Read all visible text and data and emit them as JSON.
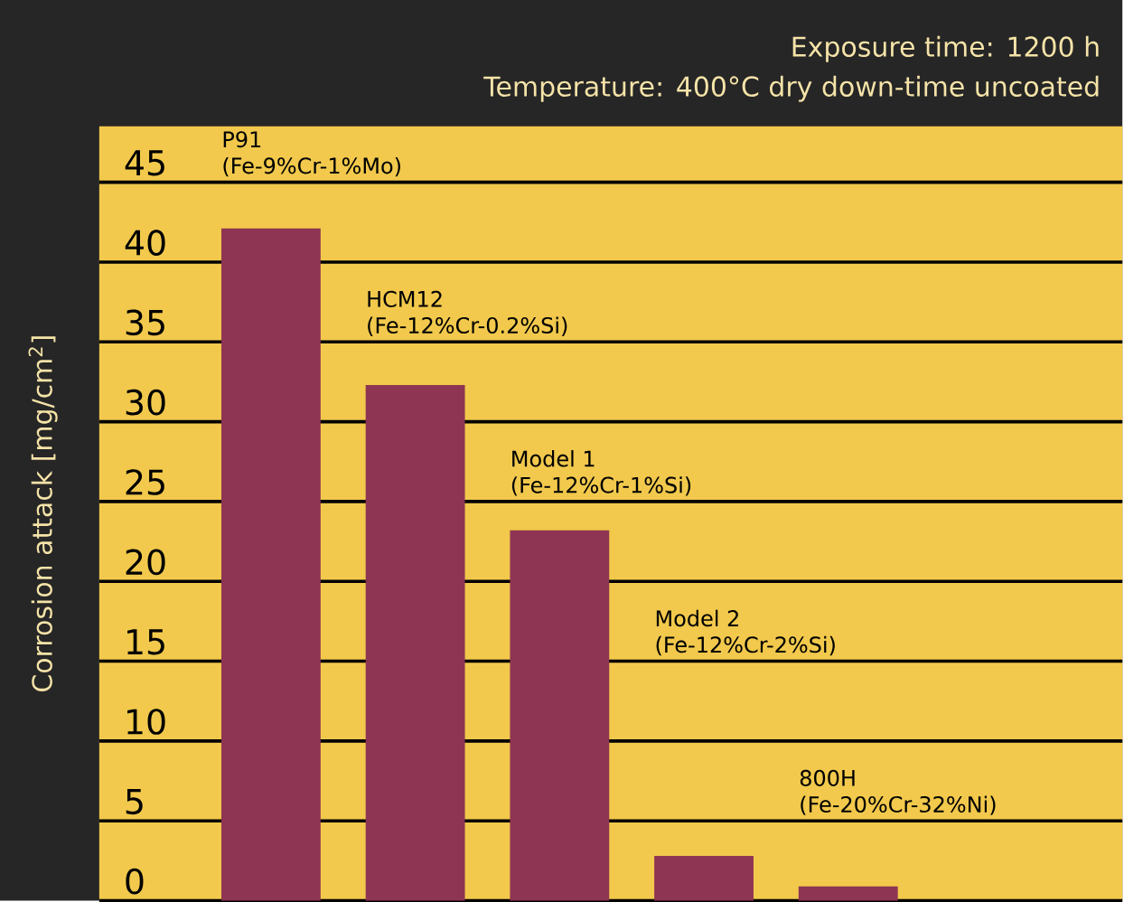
{
  "chart_data": {
    "type": "bar",
    "title": "Exposure time: 1200 h",
    "subtitle": "Temperature: 400°C dry down-time uncoated",
    "ylabel": "Corrosion attack [mg/cm$^{2}$]",
    "categories": [
      "P91",
      "HCM12",
      "Model 1",
      "Model 2",
      "800H"
    ],
    "values": [
      42.1,
      32.3,
      23.2,
      2.8,
      0.9
    ],
    "color": "#8e3553",
    "annotations": [
      "(Fe-9%Cr-1%Mo)",
      "(Fe-12%Cr-0.2%Si)",
      "(Fe-12%Cr-1%Si)",
      "(Fe-12%Cr-2%Si)",
      "(Fe-20%Cr-32%Ni)"
    ],
    "ylim": [
      0,
      48.5
    ],
    "yticks": [
      0,
      5,
      10,
      15,
      20,
      25,
      30,
      35,
      40,
      45
    ],
    "grid": "y"
  }
}
